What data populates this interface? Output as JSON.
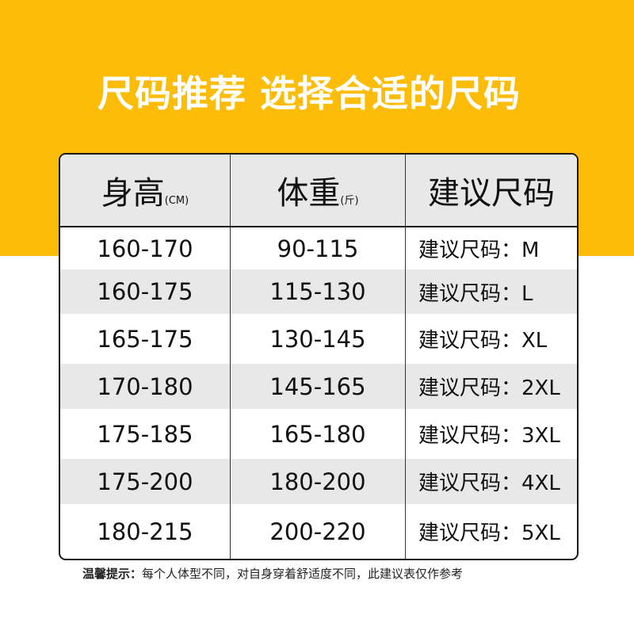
{
  "title": "尺码推荐 选择合适的尺码",
  "header": {
    "height": "身高",
    "height_unit": "(CM)",
    "weight": "体重",
    "weight_unit": "(斤)",
    "size": "建议尺码"
  },
  "rows": [
    {
      "height": "160-170",
      "weight": "90-115",
      "size": "建议尺码：M"
    },
    {
      "height": "160-175",
      "weight": "115-130",
      "size": "建议尺码：L"
    },
    {
      "height": "165-175",
      "weight": "130-145",
      "size": "建议尺码：XL"
    },
    {
      "height": "170-180",
      "weight": "145-165",
      "size": "建议尺码：2XL"
    },
    {
      "height": "175-185",
      "weight": "165-180",
      "size": "建议尺码：3XL"
    },
    {
      "height": "175-200",
      "weight": "180-200",
      "size": "建议尺码：4XL"
    },
    {
      "height": "180-215",
      "weight": "200-220",
      "size": "建议尺码：5XL"
    }
  ],
  "note": {
    "label": "温馨提示：",
    "text": "每个人体型不同，对自身穿着舒适度不同，此建议表仅作参考"
  },
  "colors": {
    "accent": "#fcbc07",
    "stripe": "#e9e8e9"
  }
}
